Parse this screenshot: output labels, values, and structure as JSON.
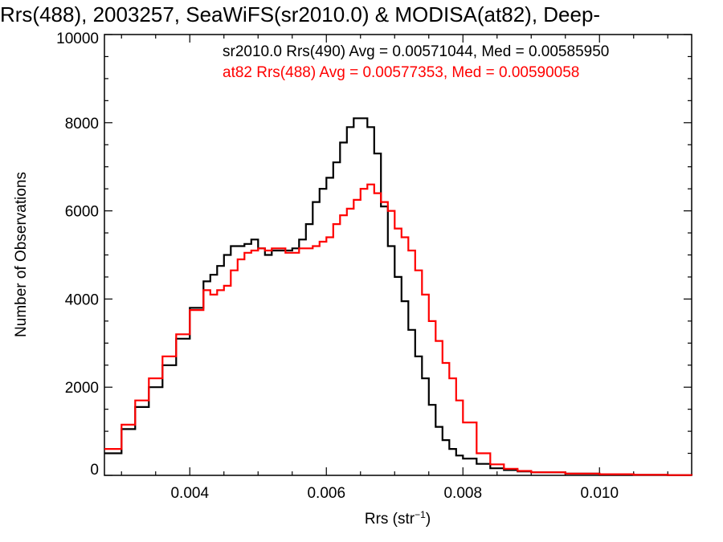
{
  "chart_data": {
    "type": "line",
    "title": "Rrs(488), 2003257, SeaWiFS(sr2010.0) & MODISA(at82), Deep-",
    "xlabel": "Rrs (str",
    "xlabel_unit_sup": "−1",
    "xlabel_close": ")",
    "ylabel": "Number of Observations",
    "xlim": [
      0.00275,
      0.01135
    ],
    "ylim": [
      0,
      10000
    ],
    "x_ticks": [
      0.004,
      0.006,
      0.008,
      0.01
    ],
    "x_tick_labels": [
      "0.004",
      "0.006",
      "0.008",
      "0.010"
    ],
    "y_ticks": [
      0,
      2000,
      4000,
      6000,
      8000,
      10000
    ],
    "y_tick_labels": [
      "0",
      "2000",
      "4000",
      "6000",
      "8000",
      "10000"
    ],
    "grid": false,
    "legend_position": "top-right",
    "series": [
      {
        "name": "sr2010.0 Rrs(490) Avg = 0.00571044, Med = 0.00585950",
        "color": "#000000",
        "x": [
          0.00275,
          0.003,
          0.0032,
          0.0034,
          0.0036,
          0.0038,
          0.004,
          0.0042,
          0.0043,
          0.0044,
          0.0045,
          0.0046,
          0.0047,
          0.0048,
          0.0049,
          0.005,
          0.0051,
          0.0052,
          0.0053,
          0.0054,
          0.0055,
          0.0056,
          0.0057,
          0.0058,
          0.0059,
          0.006,
          0.0061,
          0.0062,
          0.0063,
          0.0064,
          0.0065,
          0.0066,
          0.0067,
          0.0068,
          0.0069,
          0.007,
          0.0071,
          0.0072,
          0.0073,
          0.0074,
          0.0075,
          0.0076,
          0.0077,
          0.0078,
          0.0079,
          0.008,
          0.0082,
          0.0084,
          0.0086,
          0.0088,
          0.009,
          0.0095,
          0.01,
          0.0105,
          0.011,
          0.01135
        ],
        "y": [
          500,
          1050,
          1550,
          2000,
          2500,
          3100,
          3800,
          4400,
          4550,
          4750,
          5000,
          5200,
          5200,
          5250,
          5350,
          5150,
          5000,
          5100,
          5100,
          5100,
          5150,
          5350,
          5700,
          6200,
          6500,
          6750,
          7100,
          7550,
          7900,
          8100,
          8100,
          7900,
          7300,
          6100,
          5200,
          4500,
          3950,
          3300,
          2700,
          2200,
          1600,
          1100,
          800,
          600,
          450,
          380,
          260,
          160,
          120,
          90,
          70,
          40,
          25,
          12,
          5,
          0
        ]
      },
      {
        "name": "at82 Rrs(488) Avg = 0.00577353, Med = 0.00590058",
        "color": "#ff0000",
        "x": [
          0.00275,
          0.003,
          0.0032,
          0.0034,
          0.0036,
          0.0038,
          0.004,
          0.0042,
          0.0043,
          0.0044,
          0.0045,
          0.0046,
          0.0047,
          0.0048,
          0.0049,
          0.005,
          0.0051,
          0.0052,
          0.0053,
          0.0054,
          0.0055,
          0.0056,
          0.0057,
          0.0058,
          0.0059,
          0.006,
          0.0061,
          0.0062,
          0.0063,
          0.0064,
          0.0065,
          0.0066,
          0.0067,
          0.0068,
          0.0069,
          0.007,
          0.0071,
          0.0072,
          0.0073,
          0.0074,
          0.0075,
          0.0076,
          0.0077,
          0.0078,
          0.0079,
          0.008,
          0.0082,
          0.0084,
          0.0086,
          0.0088,
          0.009,
          0.0095,
          0.01,
          0.0105,
          0.011,
          0.01135
        ],
        "y": [
          600,
          1150,
          1700,
          2200,
          2700,
          3200,
          3750,
          4200,
          4100,
          4200,
          4300,
          4650,
          4900,
          5050,
          5100,
          5150,
          5100,
          5150,
          5150,
          5050,
          5050,
          5150,
          5150,
          5200,
          5300,
          5400,
          5700,
          5900,
          6050,
          6250,
          6500,
          6600,
          6400,
          6200,
          6000,
          5600,
          5400,
          5100,
          4650,
          4100,
          3500,
          3050,
          2550,
          2200,
          1700,
          1200,
          500,
          250,
          150,
          100,
          70,
          40,
          25,
          12,
          5,
          0
        ]
      }
    ]
  }
}
